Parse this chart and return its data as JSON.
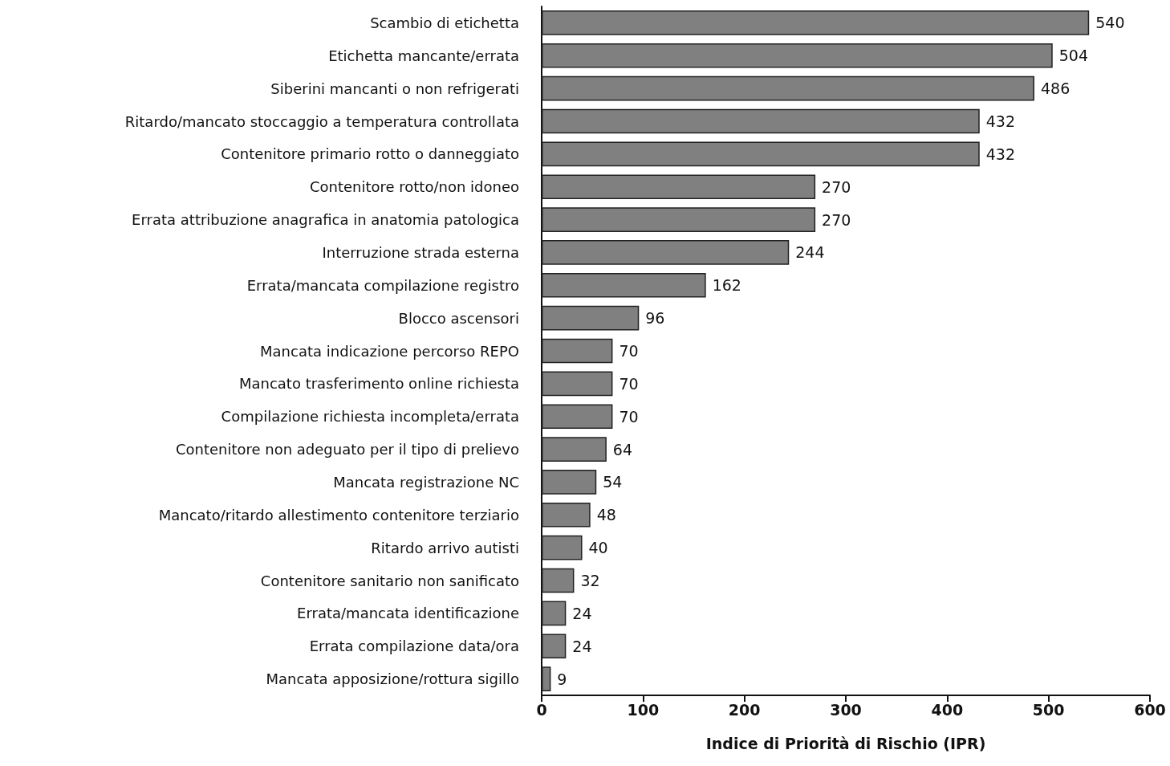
{
  "chart_data": {
    "type": "bar",
    "orientation": "horizontal",
    "xlabel": "Indice di Priorità di Rischio (IPR)",
    "categories": [
      "Scambio di etichetta",
      "Etichetta mancante/errata",
      "Siberini mancanti o non refrigerati",
      "Ritardo/mancato stoccaggio a temperatura controllata",
      "Contenitore primario rotto o danneggiato",
      "Contenitore rotto/non idoneo",
      "Errata attribuzione anagrafica in anatomia patologica",
      "Interruzione strada esterna",
      "Errata/mancata compilazione registro",
      "Blocco ascensori",
      "Mancata indicazione percorso REPO",
      "Mancato trasferimento online richiesta",
      "Compilazione richiesta incompleta/errata",
      "Contenitore non adeguato per il tipo di prelievo",
      "Mancata registrazione NC",
      "Mancato/ritardo allestimento contenitore terziario",
      "Ritardo arrivo autisti",
      "Contenitore sanitario non sanificato",
      "Errata/mancata identificazione",
      "Errata compilazione data/ora",
      "Mancata apposizione/rottura sigillo"
    ],
    "values": [
      540,
      504,
      486,
      432,
      432,
      270,
      270,
      244,
      162,
      96,
      70,
      70,
      70,
      64,
      54,
      48,
      40,
      32,
      24,
      24,
      9
    ],
    "color": "#808080",
    "xlim": [
      0,
      600
    ],
    "xticks": [
      0,
      100,
      200,
      300,
      400,
      500,
      600
    ],
    "data_labels": true
  }
}
